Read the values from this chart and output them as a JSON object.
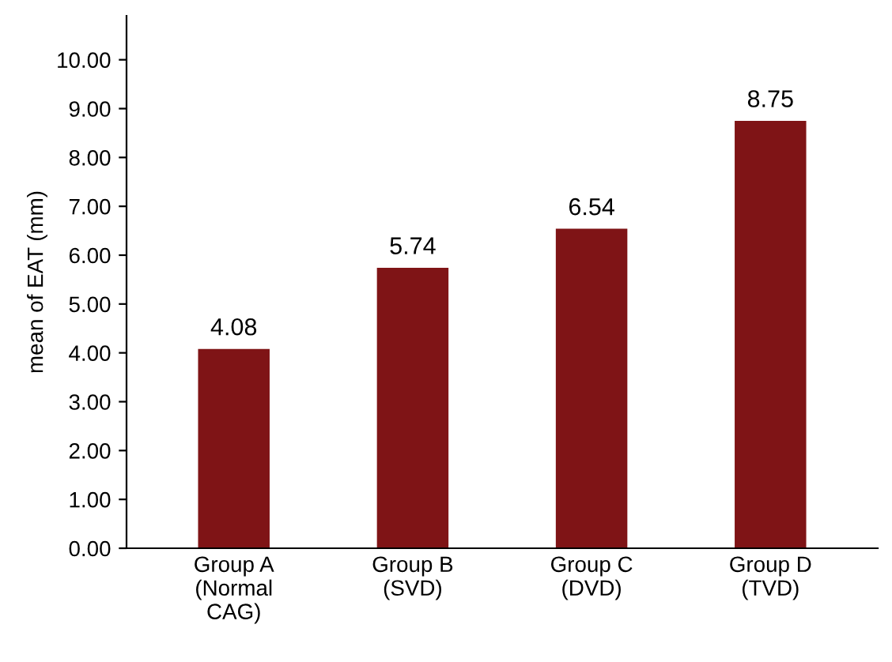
{
  "chart_data": {
    "type": "bar",
    "ylabel": "mean of EAT (mm)",
    "categories": [
      "Group A\n(Normal\nCAG)",
      "Group B\n(SVD)",
      "Group C\n(DVD)",
      "Group D\n(TVD)"
    ],
    "values": [
      4.08,
      5.74,
      6.54,
      8.75
    ],
    "color": "#7f1416",
    "data_labels": true,
    "grid": false,
    "legend": false,
    "ylim": [
      0,
      10.9
    ],
    "yticks": [
      {
        "value": 0,
        "label": "0.00"
      },
      {
        "value": 1,
        "label": "1.00"
      },
      {
        "value": 2,
        "label": "2.00"
      },
      {
        "value": 3,
        "label": "3.00"
      },
      {
        "value": 4,
        "label": "4.00"
      },
      {
        "value": 5,
        "label": "5.00"
      },
      {
        "value": 6,
        "label": "6.00"
      },
      {
        "value": 7,
        "label": "7.00"
      },
      {
        "value": 8,
        "label": "8.00"
      },
      {
        "value": 9,
        "label": "9.00"
      },
      {
        "value": 10,
        "label": "10.00"
      }
    ]
  }
}
